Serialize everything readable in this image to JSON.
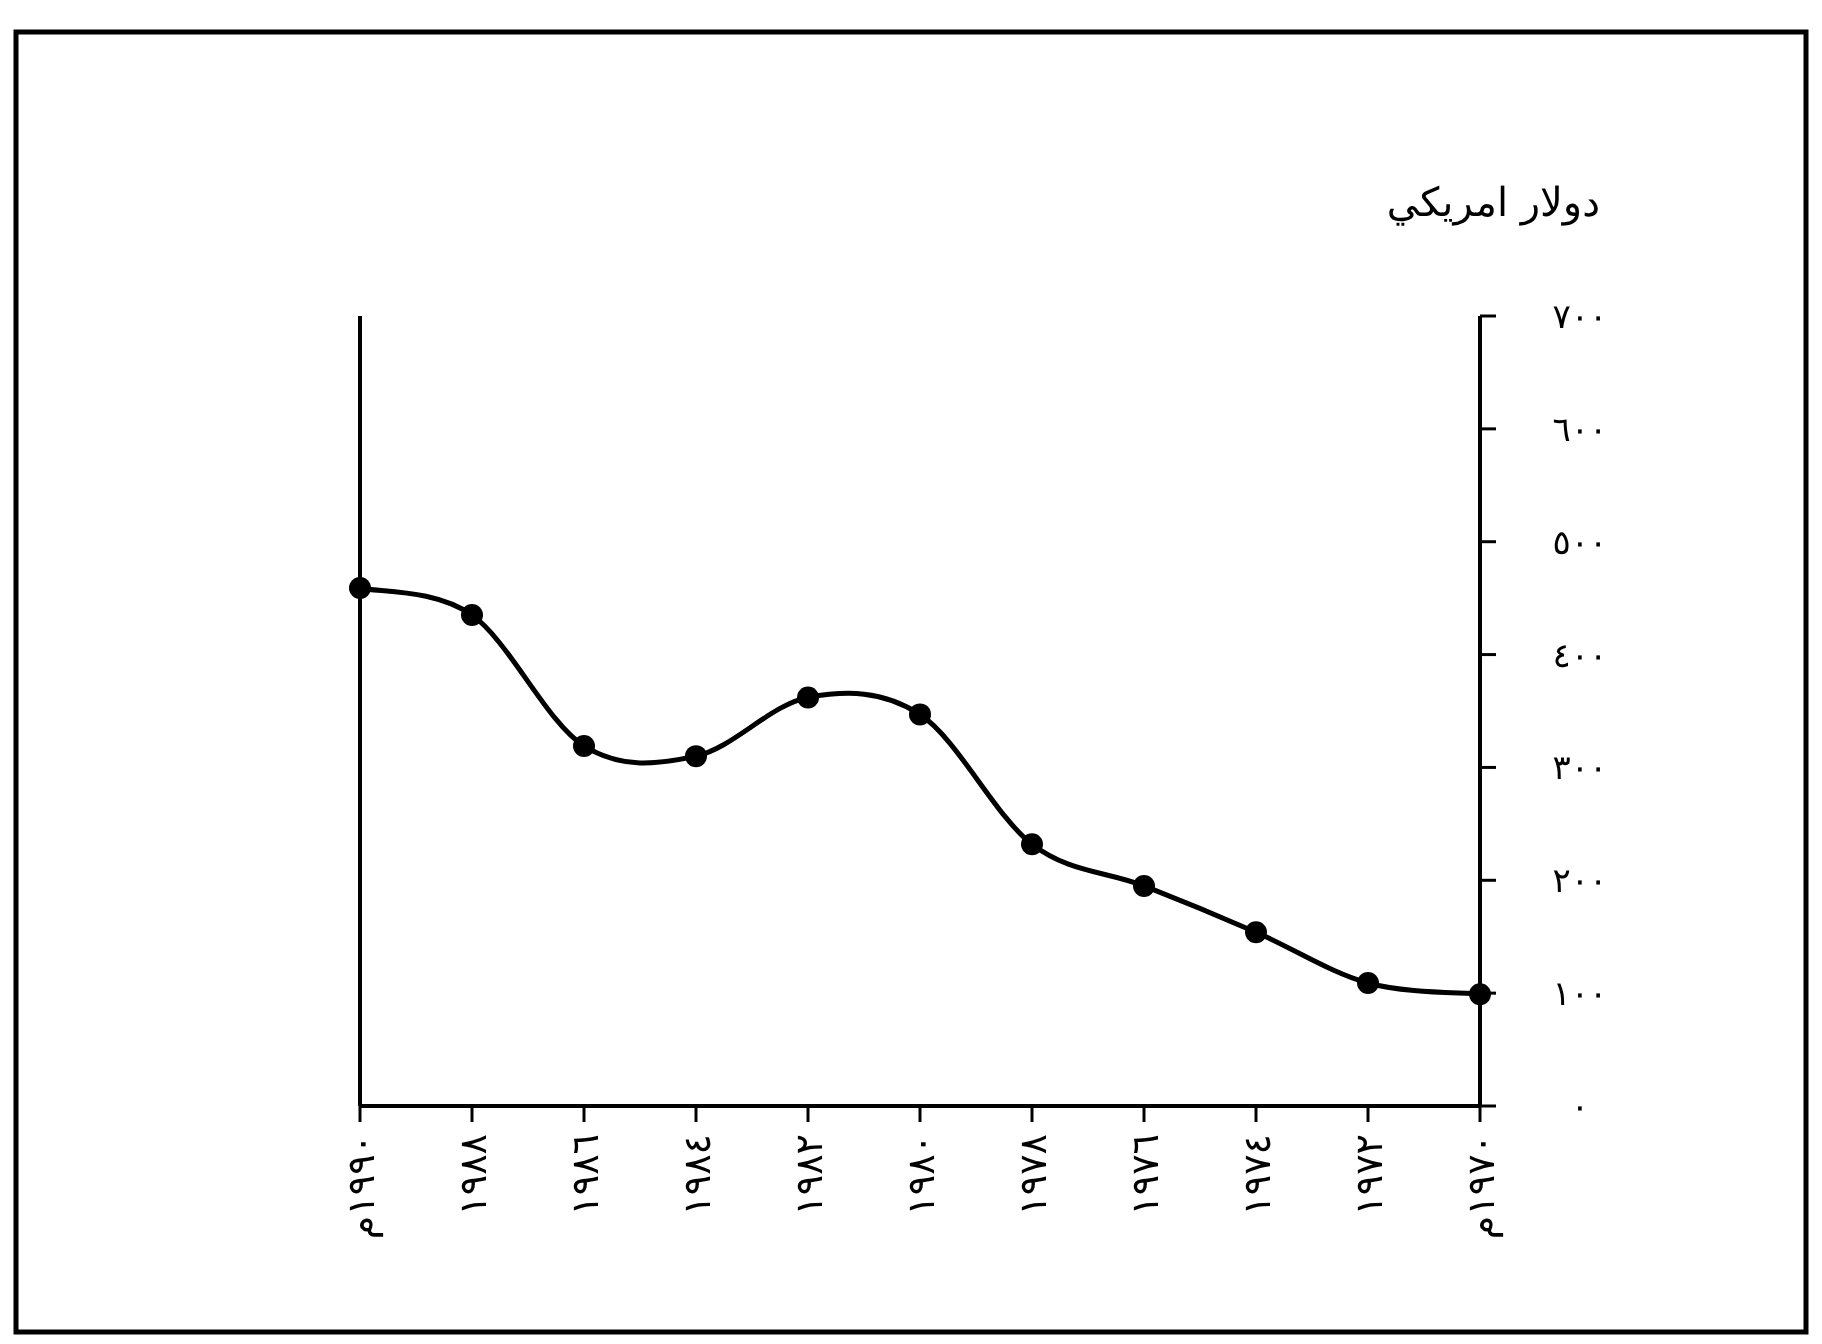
{
  "chart_data": {
    "type": "line",
    "ylabel": "دولار امريكي",
    "x": [
      1990,
      1988,
      1986,
      1984,
      1982,
      1980,
      1978,
      1976,
      1974,
      1972,
      1970
    ],
    "series": [
      {
        "color": "#000000",
        "values": [
          459,
          435,
          319,
          310,
          362,
          347,
          232,
          195,
          154,
          109,
          99
        ]
      }
    ],
    "xlim": [
      1990,
      1970
    ],
    "ylim": [
      0,
      700
    ],
    "xticks": [
      {
        "value": 1990,
        "label": "١٩٩٠م"
      },
      {
        "value": 1988,
        "label": "١٩٨٨"
      },
      {
        "value": 1986,
        "label": "١٩٨٦"
      },
      {
        "value": 1984,
        "label": "١٩٨٤"
      },
      {
        "value": 1982,
        "label": "١٩٨٢"
      },
      {
        "value": 1980,
        "label": "١٩٨٠"
      },
      {
        "value": 1978,
        "label": "١٩٧٨"
      },
      {
        "value": 1976,
        "label": "١٩٧٦"
      },
      {
        "value": 1974,
        "label": "١٩٧٤"
      },
      {
        "value": 1972,
        "label": "١٩٧٢"
      },
      {
        "value": 1970,
        "label": "١٩٧٠م"
      }
    ],
    "yticks": [
      {
        "value": 0,
        "label": "٠"
      },
      {
        "value": 100,
        "label": "١٠٠"
      },
      {
        "value": 200,
        "label": "٢٠٠"
      },
      {
        "value": 300,
        "label": "٣٠٠"
      },
      {
        "value": 400,
        "label": "٤٠٠"
      },
      {
        "value": 500,
        "label": "٥٠٠"
      },
      {
        "value": 600,
        "label": "٦٠٠"
      },
      {
        "value": 700,
        "label": "٧٠٠"
      }
    ],
    "marker": "circle",
    "line_style": "solid",
    "grid": false
  }
}
